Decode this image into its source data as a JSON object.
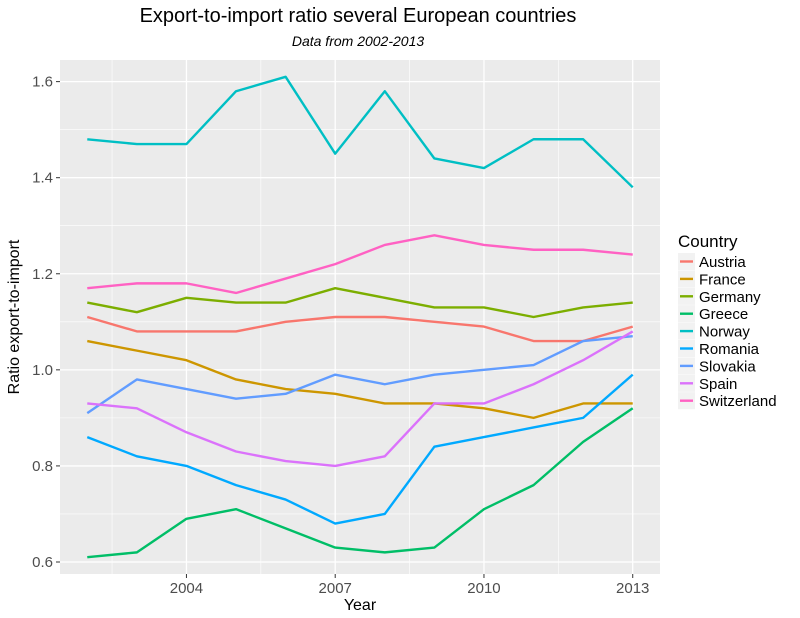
{
  "chart_data": {
    "type": "line",
    "title": "Export-to-import ratio several European countries",
    "subtitle": "Data from 2002-2013",
    "xlabel": "Year",
    "ylabel": "Ratio export-to-import",
    "legend_title": "Country",
    "legend_position": "right",
    "grid": true,
    "xlim": [
      2001.45,
      2013.55
    ],
    "ylim": [
      0.575,
      1.645
    ],
    "x_ticks": [
      2004,
      2007,
      2010,
      2013
    ],
    "y_ticks": [
      0.6,
      0.8,
      1.0,
      1.2,
      1.4,
      1.6
    ],
    "y_tick_labels": [
      "0.6",
      "0.8",
      "1.0",
      "1.2",
      "1.4",
      "1.6"
    ],
    "x": [
      2002,
      2003,
      2004,
      2005,
      2006,
      2007,
      2008,
      2009,
      2010,
      2011,
      2012,
      2013
    ],
    "series": [
      {
        "name": "Austria",
        "color": "#F8766D",
        "values": [
          1.11,
          1.08,
          1.08,
          1.08,
          1.1,
          1.11,
          1.11,
          1.1,
          1.09,
          1.06,
          1.06,
          1.09
        ]
      },
      {
        "name": "France",
        "color": "#CD9600",
        "values": [
          1.06,
          1.04,
          1.02,
          0.98,
          0.96,
          0.95,
          0.93,
          0.93,
          0.92,
          0.9,
          0.93,
          0.93
        ]
      },
      {
        "name": "Germany",
        "color": "#7CAE00",
        "values": [
          1.14,
          1.12,
          1.15,
          1.14,
          1.14,
          1.17,
          1.15,
          1.13,
          1.13,
          1.11,
          1.13,
          1.14
        ]
      },
      {
        "name": "Greece",
        "color": "#00BE67",
        "values": [
          0.61,
          0.62,
          0.69,
          0.71,
          0.67,
          0.63,
          0.62,
          0.63,
          0.71,
          0.76,
          0.85,
          0.92
        ]
      },
      {
        "name": "Norway",
        "color": "#00BFC4",
        "values": [
          1.48,
          1.47,
          1.47,
          1.58,
          1.61,
          1.45,
          1.58,
          1.44,
          1.42,
          1.48,
          1.48,
          1.38
        ]
      },
      {
        "name": "Romania",
        "color": "#00A9FF",
        "values": [
          0.86,
          0.82,
          0.8,
          0.76,
          0.73,
          0.68,
          0.7,
          0.84,
          0.86,
          0.88,
          0.9,
          0.99
        ]
      },
      {
        "name": "Slovakia",
        "color": "#619CFF",
        "values": [
          0.91,
          0.98,
          0.96,
          0.94,
          0.95,
          0.99,
          0.97,
          0.99,
          1.0,
          1.01,
          1.06,
          1.07
        ]
      },
      {
        "name": "Spain",
        "color": "#DB72FB",
        "values": [
          0.93,
          0.92,
          0.87,
          0.83,
          0.81,
          0.8,
          0.82,
          0.93,
          0.93,
          0.97,
          1.02,
          1.08
        ]
      },
      {
        "name": "Switzerland",
        "color": "#FF61C3",
        "values": [
          1.17,
          1.18,
          1.18,
          1.16,
          1.19,
          1.22,
          1.26,
          1.28,
          1.26,
          1.25,
          1.25,
          1.24
        ]
      }
    ]
  },
  "colors": {
    "panel_background": "#EBEBEB",
    "grid_major": "#FFFFFF",
    "tick_label": "#4D4D4D"
  }
}
